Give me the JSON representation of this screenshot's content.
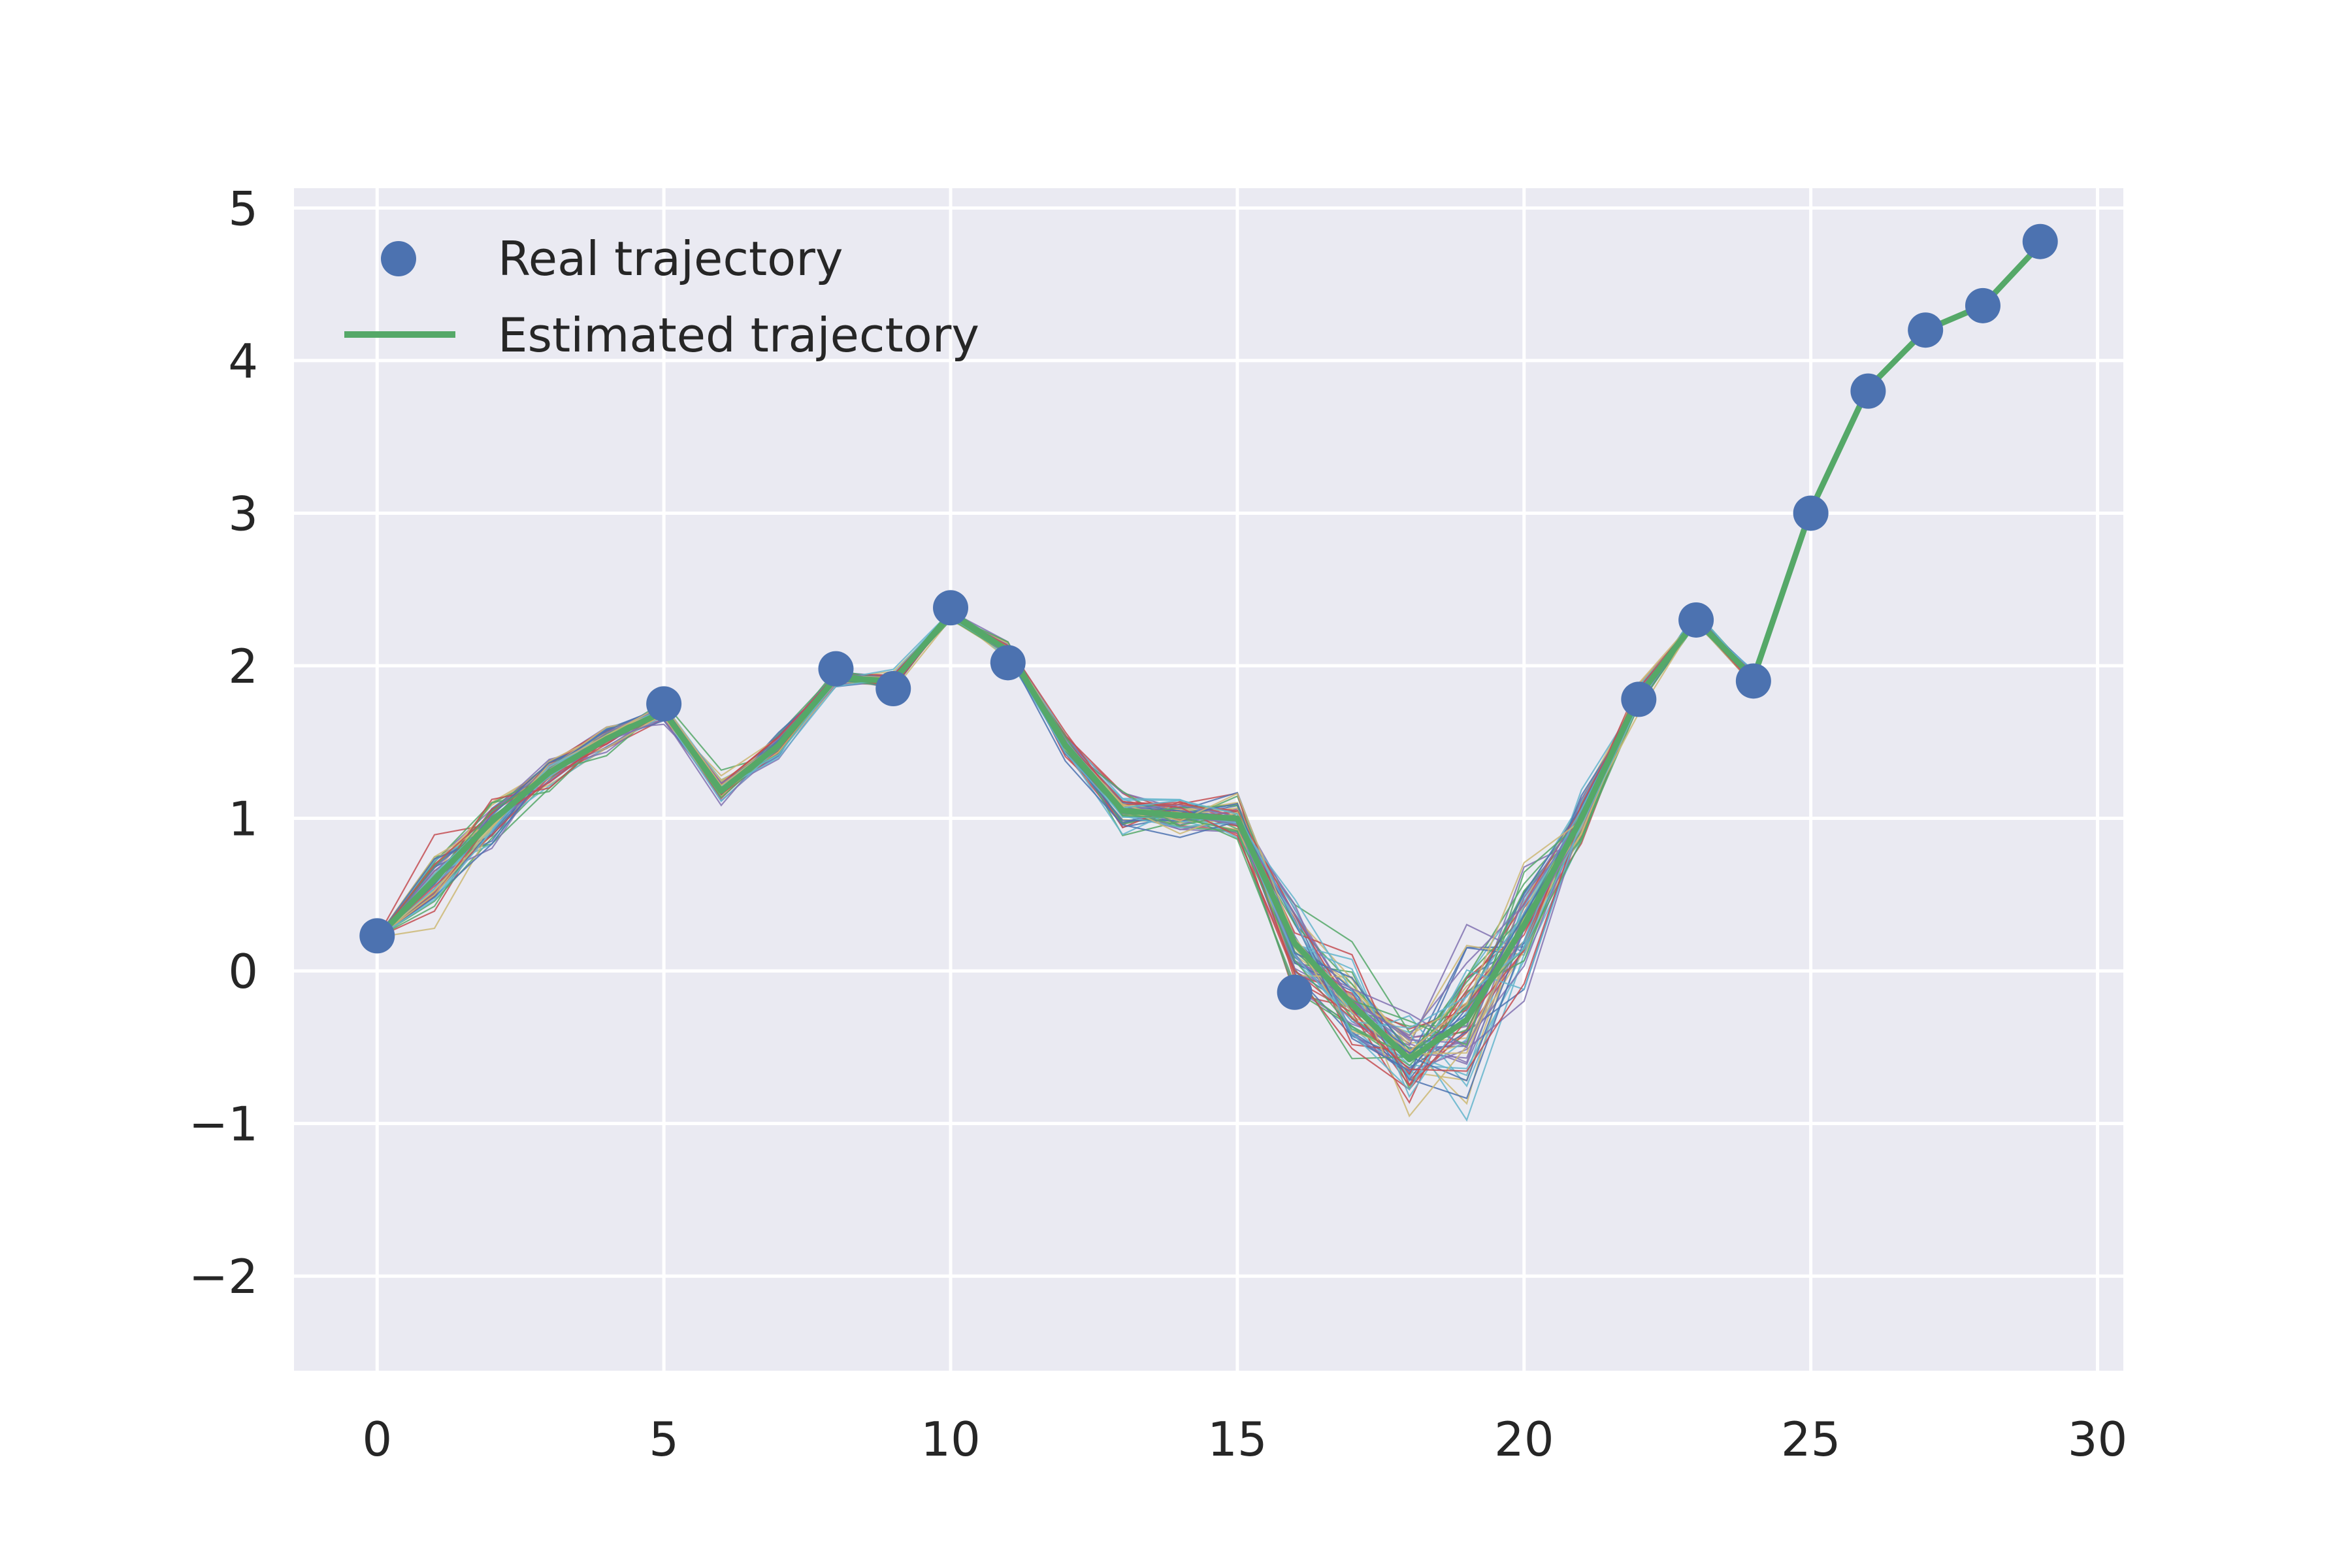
{
  "chart_data": {
    "type": "line",
    "title": "",
    "xlabel": "",
    "ylabel": "",
    "xlim": [
      -1.45,
      30.45
    ],
    "ylim": [
      -2.62,
      5.13
    ],
    "xticks": [
      0,
      5,
      10,
      15,
      20,
      25,
      30
    ],
    "xtick_labels": [
      "0",
      "5",
      "10",
      "15",
      "20",
      "25",
      "30"
    ],
    "yticks": [
      -2,
      -1,
      0,
      1,
      2,
      3,
      4,
      5
    ],
    "ytick_labels": [
      "−2",
      "−1",
      "0",
      "1",
      "2",
      "3",
      "4",
      "5"
    ],
    "grid": true,
    "background": "#eaeaf2",
    "grid_color": "#ffffff",
    "legend": {
      "placement": "top-left",
      "entries": [
        {
          "label": "Real trajectory",
          "marker": "circle",
          "color": "#4c72b0"
        },
        {
          "label": "Estimated trajectory",
          "marker": "line",
          "color": "#55a868"
        }
      ]
    },
    "series": [
      {
        "name": "Real trajectory",
        "style": "markers",
        "color": "#4c72b0",
        "x": [
          0,
          5,
          8,
          9,
          10,
          11,
          16,
          22,
          23,
          24,
          25,
          26,
          27,
          28,
          29
        ],
        "y": [
          0.23,
          1.75,
          1.98,
          1.85,
          2.38,
          2.02,
          -0.14,
          1.78,
          2.3,
          1.9,
          3.0,
          3.8,
          4.2,
          4.36,
          4.78
        ]
      },
      {
        "name": "Estimated trajectory",
        "style": "line",
        "color": "#55a868",
        "x": [
          0,
          1,
          2,
          3,
          4,
          5,
          6,
          7,
          8,
          9,
          10,
          11,
          12,
          13,
          14,
          15,
          16,
          17,
          18,
          19,
          20,
          21,
          22,
          23,
          24,
          25,
          26,
          27,
          28,
          29
        ],
        "y": [
          0.22,
          0.6,
          0.98,
          1.3,
          1.52,
          1.7,
          1.18,
          1.48,
          1.92,
          1.9,
          2.34,
          2.1,
          1.48,
          1.05,
          1.02,
          1.0,
          0.18,
          -0.22,
          -0.58,
          -0.32,
          0.3,
          1.0,
          1.8,
          2.3,
          1.92,
          3.02,
          3.82,
          4.2,
          4.36,
          4.76
        ]
      }
    ],
    "particle_trajectories": {
      "count": 60,
      "colors": [
        "#4c72b0",
        "#55a868",
        "#c44e52",
        "#8172b2",
        "#ccb974",
        "#64b5cd"
      ],
      "x": [
        0,
        1,
        2,
        3,
        4,
        5,
        6,
        7,
        8,
        9,
        10,
        11,
        12,
        13,
        14,
        15,
        16,
        17,
        18,
        19,
        20,
        21,
        22,
        23,
        24,
        25,
        26,
        27,
        28,
        29
      ],
      "mean": [
        0.22,
        0.6,
        0.98,
        1.3,
        1.52,
        1.7,
        1.18,
        1.48,
        1.92,
        1.9,
        2.34,
        2.1,
        1.48,
        1.05,
        1.02,
        1.0,
        0.18,
        -0.22,
        -0.58,
        -0.32,
        0.3,
        1.0,
        1.8,
        2.3,
        1.92,
        3.02,
        3.82,
        4.2,
        4.36,
        4.76
      ],
      "spread": [
        0.0,
        0.2,
        0.15,
        0.1,
        0.08,
        0.05,
        0.1,
        0.08,
        0.05,
        0.05,
        0.03,
        0.05,
        0.08,
        0.12,
        0.1,
        0.12,
        0.3,
        0.32,
        0.35,
        0.55,
        0.35,
        0.15,
        0.08,
        0.04,
        0.04,
        0.02,
        0.01,
        0.01,
        0.01,
        0.01
      ]
    }
  }
}
